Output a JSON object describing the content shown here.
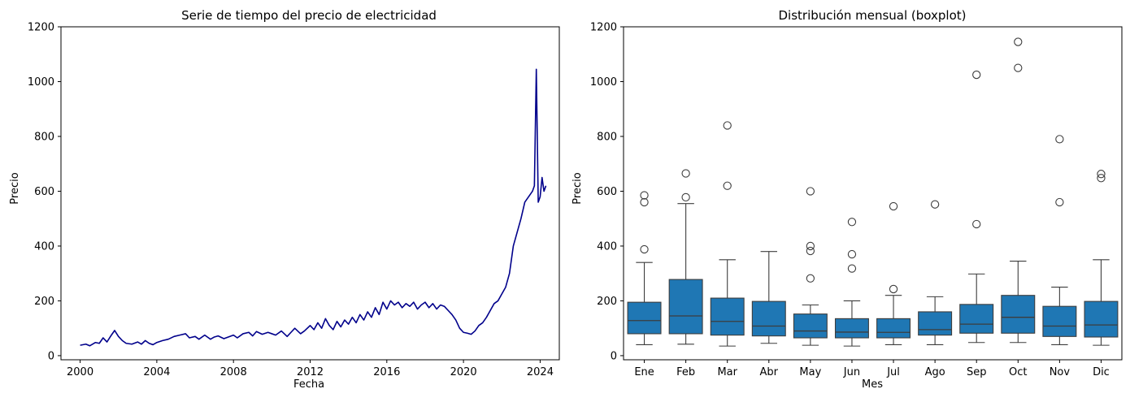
{
  "chart_data": [
    {
      "type": "line",
      "title": "Serie de tiempo del precio de electricidad",
      "xlabel": "Fecha",
      "ylabel": "Precio",
      "xlim": [
        1999.0,
        2025.0
      ],
      "ylim": [
        -15,
        1200
      ],
      "xticks": [
        2000,
        2004,
        2008,
        2012,
        2016,
        2020,
        2024
      ],
      "xtick_labels": [
        "2000",
        "2004",
        "2008",
        "2012",
        "2016",
        "2020",
        "2024"
      ],
      "yticks": [
        0,
        200,
        400,
        600,
        800,
        1000,
        1200
      ],
      "ytick_labels": [
        "0",
        "200",
        "400",
        "600",
        "800",
        "1000",
        "1200"
      ],
      "grid": false,
      "series": [
        {
          "color": "#00008b",
          "points": [
            [
              2000.0,
              38
            ],
            [
              2000.3,
              42
            ],
            [
              2000.5,
              36
            ],
            [
              2000.8,
              48
            ],
            [
              2001.0,
              45
            ],
            [
              2001.2,
              65
            ],
            [
              2001.4,
              50
            ],
            [
              2001.6,
              72
            ],
            [
              2001.8,
              92
            ],
            [
              2002.0,
              70
            ],
            [
              2002.2,
              55
            ],
            [
              2002.4,
              45
            ],
            [
              2002.7,
              42
            ],
            [
              2003.0,
              50
            ],
            [
              2003.2,
              42
            ],
            [
              2003.4,
              55
            ],
            [
              2003.6,
              45
            ],
            [
              2003.8,
              40
            ],
            [
              2004.0,
              48
            ],
            [
              2004.3,
              55
            ],
            [
              2004.6,
              60
            ],
            [
              2004.9,
              70
            ],
            [
              2005.2,
              75
            ],
            [
              2005.5,
              80
            ],
            [
              2005.7,
              65
            ],
            [
              2006.0,
              70
            ],
            [
              2006.2,
              60
            ],
            [
              2006.5,
              75
            ],
            [
              2006.8,
              60
            ],
            [
              2007.0,
              68
            ],
            [
              2007.2,
              72
            ],
            [
              2007.5,
              62
            ],
            [
              2007.8,
              70
            ],
            [
              2008.0,
              75
            ],
            [
              2008.2,
              65
            ],
            [
              2008.5,
              80
            ],
            [
              2008.8,
              85
            ],
            [
              2009.0,
              72
            ],
            [
              2009.2,
              88
            ],
            [
              2009.5,
              78
            ],
            [
              2009.8,
              85
            ],
            [
              2010.0,
              80
            ],
            [
              2010.2,
              75
            ],
            [
              2010.5,
              90
            ],
            [
              2010.8,
              70
            ],
            [
              2011.0,
              85
            ],
            [
              2011.2,
              100
            ],
            [
              2011.5,
              80
            ],
            [
              2011.7,
              90
            ],
            [
              2012.0,
              110
            ],
            [
              2012.2,
              95
            ],
            [
              2012.4,
              120
            ],
            [
              2012.6,
              100
            ],
            [
              2012.8,
              135
            ],
            [
              2013.0,
              110
            ],
            [
              2013.2,
              95
            ],
            [
              2013.4,
              125
            ],
            [
              2013.6,
              105
            ],
            [
              2013.8,
              130
            ],
            [
              2014.0,
              115
            ],
            [
              2014.2,
              140
            ],
            [
              2014.4,
              120
            ],
            [
              2014.6,
              150
            ],
            [
              2014.8,
              130
            ],
            [
              2015.0,
              160
            ],
            [
              2015.2,
              140
            ],
            [
              2015.4,
              175
            ],
            [
              2015.6,
              150
            ],
            [
              2015.8,
              195
            ],
            [
              2016.0,
              170
            ],
            [
              2016.2,
              200
            ],
            [
              2016.4,
              185
            ],
            [
              2016.6,
              195
            ],
            [
              2016.8,
              175
            ],
            [
              2017.0,
              190
            ],
            [
              2017.2,
              180
            ],
            [
              2017.4,
              195
            ],
            [
              2017.6,
              170
            ],
            [
              2017.8,
              185
            ],
            [
              2018.0,
              195
            ],
            [
              2018.2,
              175
            ],
            [
              2018.4,
              190
            ],
            [
              2018.6,
              170
            ],
            [
              2018.8,
              185
            ],
            [
              2019.0,
              180
            ],
            [
              2019.2,
              165
            ],
            [
              2019.4,
              150
            ],
            [
              2019.6,
              130
            ],
            [
              2019.8,
              100
            ],
            [
              2020.0,
              85
            ],
            [
              2020.2,
              82
            ],
            [
              2020.4,
              78
            ],
            [
              2020.6,
              90
            ],
            [
              2020.8,
              110
            ],
            [
              2021.0,
              120
            ],
            [
              2021.2,
              140
            ],
            [
              2021.4,
              165
            ],
            [
              2021.6,
              190
            ],
            [
              2021.8,
              200
            ],
            [
              2022.0,
              225
            ],
            [
              2022.2,
              250
            ],
            [
              2022.4,
              300
            ],
            [
              2022.6,
              400
            ],
            [
              2022.8,
              450
            ],
            [
              2023.0,
              500
            ],
            [
              2023.2,
              560
            ],
            [
              2023.4,
              580
            ],
            [
              2023.6,
              600
            ],
            [
              2023.7,
              620
            ],
            [
              2023.8,
              1045
            ],
            [
              2023.9,
              560
            ],
            [
              2024.0,
              580
            ],
            [
              2024.1,
              650
            ],
            [
              2024.2,
              600
            ],
            [
              2024.3,
              620
            ]
          ]
        }
      ]
    },
    {
      "type": "boxplot",
      "title": "Distribución mensual (boxplot)",
      "xlabel": "Mes",
      "ylabel": "Precio",
      "ylim": [
        -15,
        1200
      ],
      "yticks": [
        0,
        200,
        400,
        600,
        800,
        1000,
        1200
      ],
      "ytick_labels": [
        "0",
        "200",
        "400",
        "600",
        "800",
        "1000",
        "1200"
      ],
      "grid": false,
      "box_color": "#1f77b4",
      "categories": [
        "Ene",
        "Feb",
        "Mar",
        "Abr",
        "May",
        "Jun",
        "Jul",
        "Ago",
        "Sep",
        "Oct",
        "Nov",
        "Dic"
      ],
      "boxes": [
        {
          "whislo": 40,
          "q1": 80,
          "med": 128,
          "q3": 195,
          "whishi": 340,
          "fliers": [
            388,
            560,
            585
          ]
        },
        {
          "whislo": 42,
          "q1": 80,
          "med": 145,
          "q3": 278,
          "whishi": 555,
          "fliers": [
            578,
            665
          ]
        },
        {
          "whislo": 35,
          "q1": 75,
          "med": 125,
          "q3": 210,
          "whishi": 350,
          "fliers": [
            620,
            840
          ]
        },
        {
          "whislo": 45,
          "q1": 72,
          "med": 108,
          "q3": 198,
          "whishi": 380,
          "fliers": []
        },
        {
          "whislo": 38,
          "q1": 65,
          "med": 90,
          "q3": 152,
          "whishi": 185,
          "fliers": [
            282,
            382,
            400,
            600
          ]
        },
        {
          "whislo": 35,
          "q1": 65,
          "med": 86,
          "q3": 135,
          "whishi": 200,
          "fliers": [
            318,
            370,
            488
          ]
        },
        {
          "whislo": 40,
          "q1": 65,
          "med": 85,
          "q3": 135,
          "whishi": 220,
          "fliers": [
            243,
            545
          ]
        },
        {
          "whislo": 40,
          "q1": 75,
          "med": 95,
          "q3": 160,
          "whishi": 215,
          "fliers": [
            552
          ]
        },
        {
          "whislo": 48,
          "q1": 82,
          "med": 115,
          "q3": 187,
          "whishi": 298,
          "fliers": [
            480,
            1025
          ]
        },
        {
          "whislo": 48,
          "q1": 82,
          "med": 140,
          "q3": 220,
          "whishi": 345,
          "fliers": [
            1050,
            1145
          ]
        },
        {
          "whislo": 40,
          "q1": 70,
          "med": 108,
          "q3": 180,
          "whishi": 250,
          "fliers": [
            560,
            790
          ]
        },
        {
          "whislo": 38,
          "q1": 68,
          "med": 112,
          "q3": 198,
          "whishi": 350,
          "fliers": [
            648,
            663
          ]
        }
      ]
    }
  ]
}
